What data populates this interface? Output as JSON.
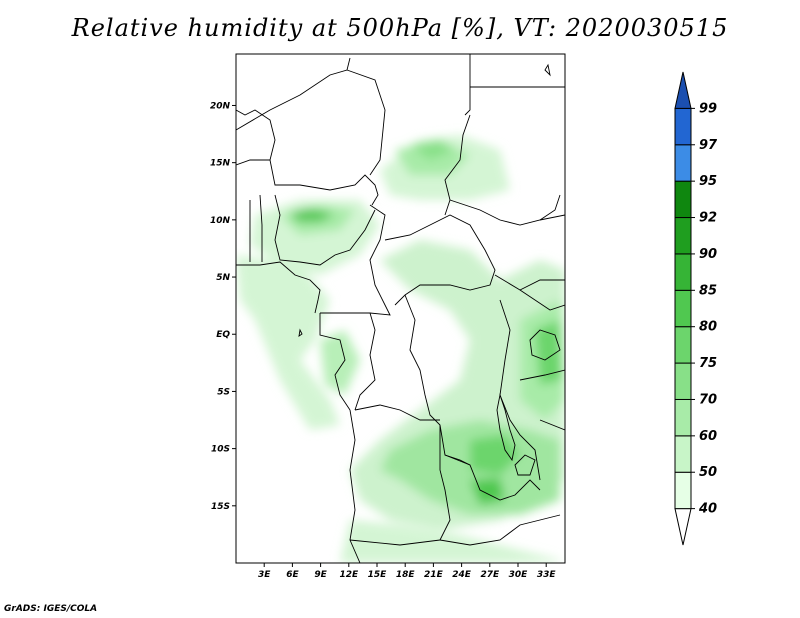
{
  "title": "Relative humidity at 500hPa [%], VT: 2020030515",
  "credit": "GrADS: IGES/COLA",
  "map": {
    "lon_range": [
      0,
      35
    ],
    "lat_range": [
      -20,
      24.5
    ],
    "lat_ticks": [
      {
        "value": 20,
        "label": "20N"
      },
      {
        "value": 15,
        "label": "15N"
      },
      {
        "value": 10,
        "label": "10N"
      },
      {
        "value": 5,
        "label": "5N"
      },
      {
        "value": 0,
        "label": "EQ"
      },
      {
        "value": -5,
        "label": "5S"
      },
      {
        "value": -10,
        "label": "10S"
      },
      {
        "value": -15,
        "label": "15S"
      }
    ],
    "lon_ticks": [
      {
        "value": 3,
        "label": "3E"
      },
      {
        "value": 6,
        "label": "6E"
      },
      {
        "value": 9,
        "label": "9E"
      },
      {
        "value": 12,
        "label": "12E"
      },
      {
        "value": 15,
        "label": "15E"
      },
      {
        "value": 18,
        "label": "18E"
      },
      {
        "value": 21,
        "label": "21E"
      },
      {
        "value": 24,
        "label": "24E"
      },
      {
        "value": 27,
        "label": "27E"
      },
      {
        "value": 30,
        "label": "30E"
      },
      {
        "value": 33,
        "label": "33E"
      }
    ]
  },
  "colorbar": {
    "levels": [
      "40",
      "50",
      "60",
      "70",
      "75",
      "80",
      "85",
      "90",
      "92",
      "95",
      "97",
      "99"
    ],
    "colors": [
      "#ffffff",
      "#e6ffe6",
      "#c8f5c8",
      "#a8eba8",
      "#88e088",
      "#6cd56c",
      "#50c850",
      "#36b436",
      "#1f9e1f",
      "#0f870f",
      "#3c8ce6",
      "#2266d2",
      "#1b4fb0"
    ]
  }
}
